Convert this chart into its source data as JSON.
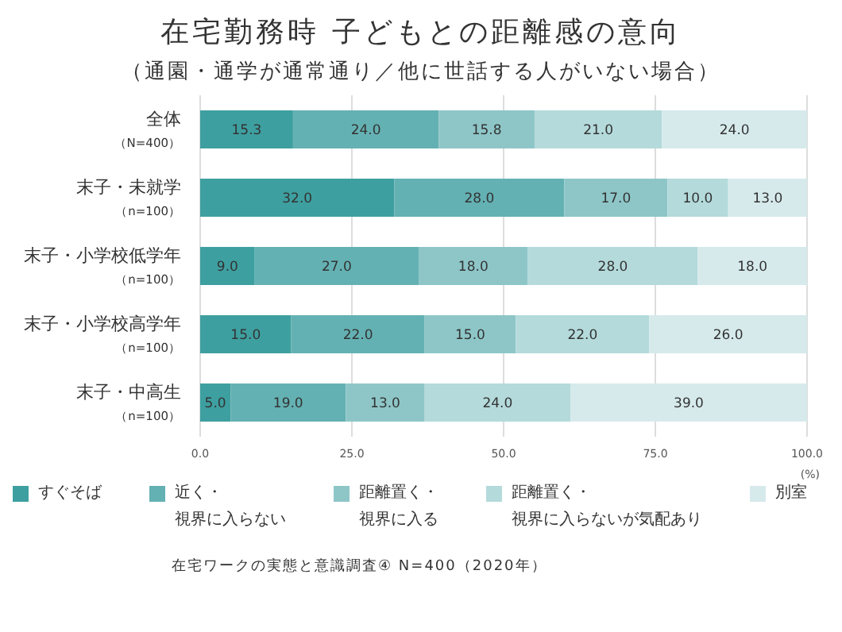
{
  "chart_data": {
    "type": "bar",
    "orientation": "horizontal",
    "stacked": true,
    "title": "在宅勤務時 子どもとの距離感の意向",
    "subtitle": "（通園・通学が通常通り／他に世話する人がいない場合）",
    "xlabel": "(%)",
    "categories": [
      "全体（N=400）",
      "末子・未就学（n=100）",
      "末子・小学校低学年（n=100）",
      "末子・小学校高学年（n=100）",
      "末子・中高生（n=100）"
    ],
    "series": [
      {
        "name": "すぐそば",
        "color": "#3e9fa0",
        "values": [
          15.3,
          32,
          9,
          15,
          5
        ],
        "value_labels": [
          "15.3",
          "32.0",
          "9.0",
          "15.0",
          "5.0"
        ]
      },
      {
        "name": "近く・視界に入らない",
        "color": "#64b1b3",
        "values": [
          24,
          28,
          27,
          22,
          19
        ],
        "value_labels": [
          "24.0",
          "28.0",
          "27.0",
          "22.0",
          "19.0"
        ]
      },
      {
        "name": "距離置く・視界に入る",
        "color": "#8ec6c8",
        "values": [
          15.8,
          17,
          18,
          15,
          13
        ],
        "value_labels": [
          "15.8",
          "17.0",
          "18.0",
          "15.0",
          "13.0"
        ]
      },
      {
        "name": "距離置く・視界に入らないが気配あり",
        "color": "#b4dadb",
        "values": [
          21,
          10,
          28,
          22,
          24
        ],
        "value_labels": [
          "21.0",
          "10.0",
          "28.0",
          "22.0",
          "24.0"
        ]
      },
      {
        "name": "別室",
        "color": "#d6eaec",
        "values": [
          24,
          13,
          18,
          26,
          39
        ],
        "value_labels": [
          "24.0",
          "13.0",
          "18.0",
          "26.0",
          "39.0"
        ]
      }
    ],
    "xlim": [
      0,
      100
    ],
    "xticks": [
      {
        "value": 0,
        "label": "0.0"
      },
      {
        "value": 25,
        "label": "25.0"
      },
      {
        "value": 50,
        "label": "50.0"
      },
      {
        "value": 75,
        "label": "75.0"
      },
      {
        "value": 100,
        "label": "100.0"
      }
    ],
    "grid": "x",
    "legend": "bottom",
    "annotations": [
      "在宅ワークの実態と意識調査④ N=400（2020年）"
    ]
  }
}
